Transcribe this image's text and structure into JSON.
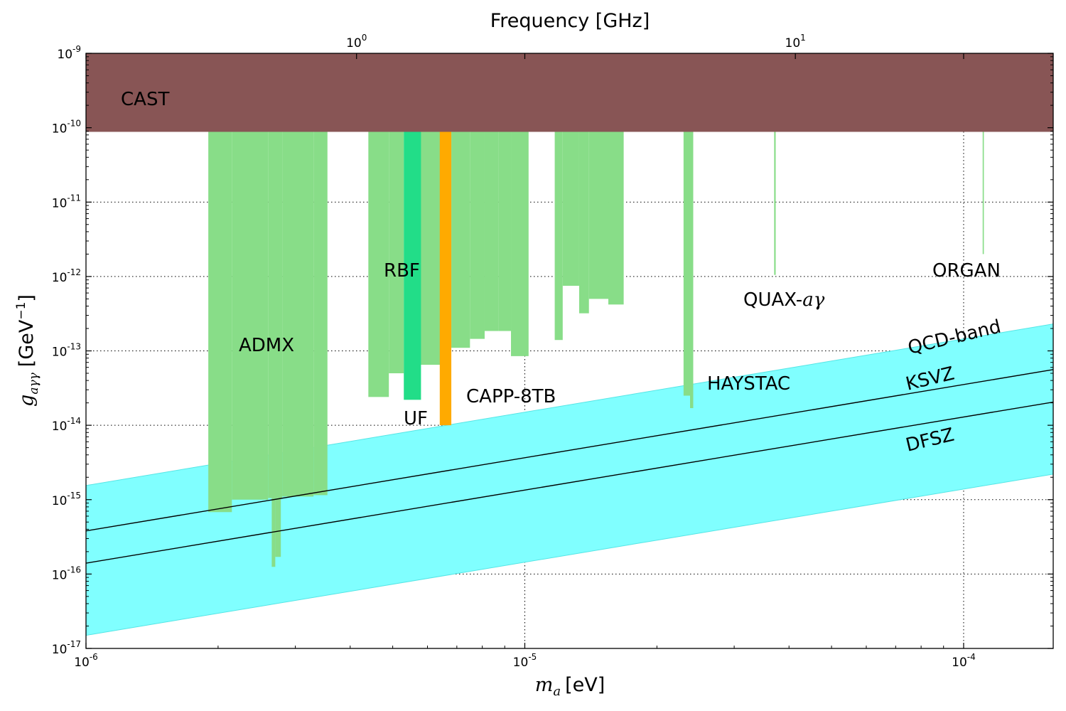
{
  "chart_data": {
    "type": "area",
    "scale": {
      "x": "log",
      "y": "log"
    },
    "xlim": [
      1e-06,
      0.00016
    ],
    "ylim": [
      1e-17,
      1e-09
    ],
    "x_ticks": [
      {
        "value": 1e-06,
        "base": "10",
        "exp": "-6"
      },
      {
        "value": 1e-05,
        "base": "10",
        "exp": "-5"
      },
      {
        "value": 0.0001,
        "base": "10",
        "exp": "-4"
      }
    ],
    "y_ticks": [
      {
        "value": 1e-17,
        "base": "10",
        "exp": "-17"
      },
      {
        "value": 1e-16,
        "base": "10",
        "exp": "-16"
      },
      {
        "value": 1e-15,
        "base": "10",
        "exp": "-15"
      },
      {
        "value": 1e-14,
        "base": "10",
        "exp": "-14"
      },
      {
        "value": 1e-13,
        "base": "10",
        "exp": "-13"
      },
      {
        "value": 1e-12,
        "base": "10",
        "exp": "-12"
      },
      {
        "value": 1e-11,
        "base": "10",
        "exp": "-11"
      },
      {
        "value": 1e-10,
        "base": "10",
        "exp": "-10"
      },
      {
        "value": 1e-09,
        "base": "10",
        "exp": "-9"
      }
    ],
    "top_ticks": [
      {
        "value_ghz": 1,
        "base": "10",
        "exp": "0"
      },
      {
        "value_ghz": 10,
        "base": "10",
        "exp": "1"
      }
    ],
    "ghz_per_ev": 241799.0,
    "xlabel_var": "m",
    "xlabel_sub": "a",
    "xlabel_unit": "[eV]",
    "ylabel_var": "g",
    "ylabel_sub": "aγγ",
    "ylabel_unit_pre": "[GeV",
    "ylabel_unit_exp": "−1",
    "ylabel_unit_post": "]",
    "top_xlabel": "Frequency [GHz]",
    "series": [
      {
        "name": "QCD-band",
        "color": "#80ffff",
        "band": {
          "x": [
            1e-06,
            0.00016
          ],
          "lower": [
            1.5e-17,
            2.2e-15
          ],
          "upper": [
            1.55e-15,
            2.3e-13
          ]
        }
      },
      {
        "name": "KSVZ",
        "color": "#000000",
        "line": {
          "x": [
            1e-06,
            0.00016
          ],
          "y": [
            3.8e-16,
            5.6e-14
          ]
        }
      },
      {
        "name": "DFSZ",
        "color": "#000000",
        "line": {
          "x": [
            1e-06,
            0.00016
          ],
          "y": [
            1.4e-16,
            2.05e-14
          ]
        }
      },
      {
        "name": "CAST",
        "color": "#885555",
        "bars": [
          {
            "x0": 1e-06,
            "x1": 0.00016,
            "y0": 8.8e-11,
            "y1": 1e-09
          }
        ]
      },
      {
        "name": "ADMX",
        "color": "#88dd88",
        "bars": [
          {
            "x0": 1.9e-06,
            "x1": 2.15e-06,
            "y0": 6.8e-16,
            "y1": 9e-11
          },
          {
            "x0": 2.15e-06,
            "x1": 2.6e-06,
            "y0": 1e-15,
            "y1": 9e-11
          },
          {
            "x0": 2.6e-06,
            "x1": 2.8e-06,
            "y0": 1.05e-15,
            "y1": 9e-11
          },
          {
            "x0": 2.8e-06,
            "x1": 3.3e-06,
            "y0": 1.1e-15,
            "y1": 9e-11
          },
          {
            "x0": 3.3e-06,
            "x1": 3.55e-06,
            "y0": 1.15e-15,
            "y1": 9e-11
          },
          {
            "x0": 2.65e-06,
            "x1": 2.7e-06,
            "y0": 1.25e-16,
            "y1": 1.05e-15
          },
          {
            "x0": 2.7e-06,
            "x1": 2.78e-06,
            "y0": 1.7e-16,
            "y1": 1.05e-15
          },
          {
            "x0": 4.4e-06,
            "x1": 4.9e-06,
            "y0": 2.4e-14,
            "y1": 9e-11
          },
          {
            "x0": 4.9e-06,
            "x1": 5.3e-06,
            "y0": 5e-14,
            "y1": 9e-11
          },
          {
            "x0": 5.7e-06,
            "x1": 6.5e-06,
            "y0": 6.5e-14,
            "y1": 9e-11
          },
          {
            "x0": 6.8e-06,
            "x1": 7.5e-06,
            "y0": 1.1e-13,
            "y1": 9e-11
          },
          {
            "x0": 7.5e-06,
            "x1": 8.1e-06,
            "y0": 1.45e-13,
            "y1": 9e-11
          },
          {
            "x0": 8.1e-06,
            "x1": 8.7e-06,
            "y0": 1.85e-13,
            "y1": 9e-11
          },
          {
            "x0": 8.7e-06,
            "x1": 9.3e-06,
            "y0": 1.85e-13,
            "y1": 9e-11
          },
          {
            "x0": 9.3e-06,
            "x1": 1.02e-05,
            "y0": 8.5e-14,
            "y1": 9e-11
          },
          {
            "x0": 1.17e-05,
            "x1": 1.22e-05,
            "y0": 1.4e-13,
            "y1": 9e-11
          },
          {
            "x0": 1.22e-05,
            "x1": 1.33e-05,
            "y0": 7.5e-13,
            "y1": 9e-11
          },
          {
            "x0": 1.33e-05,
            "x1": 1.4e-05,
            "y0": 3.2e-13,
            "y1": 9e-11
          },
          {
            "x0": 1.4e-05,
            "x1": 1.55e-05,
            "y0": 5e-13,
            "y1": 9e-11
          },
          {
            "x0": 1.55e-05,
            "x1": 1.68e-05,
            "y0": 4.2e-13,
            "y1": 9e-11
          }
        ]
      },
      {
        "name": "HAYSTAC",
        "color": "#88dd88",
        "bars": [
          {
            "x0": 2.3e-05,
            "x1": 2.38e-05,
            "y0": 2.5e-14,
            "y1": 9e-11
          },
          {
            "x0": 2.38e-05,
            "x1": 2.42e-05,
            "y0": 1.7e-14,
            "y1": 9e-11
          }
        ]
      },
      {
        "name": "QUAX-aγ",
        "color": "#88dd88",
        "bars": [
          {
            "x0": 3.7e-05,
            "x1": 3.73e-05,
            "y0": 1.05e-12,
            "y1": 9e-11
          }
        ]
      },
      {
        "name": "ORGAN",
        "color": "#88dd88",
        "bars": [
          {
            "x0": 0.0001105,
            "x1": 0.0001112,
            "y0": 2e-12,
            "y1": 9e-11
          }
        ]
      },
      {
        "name": "UF",
        "color": "#22dd88",
        "bars": [
          {
            "x0": 5.3e-06,
            "x1": 5.8e-06,
            "y0": 2.2e-14,
            "y1": 9e-11
          }
        ]
      },
      {
        "name": "CAPP-8TB",
        "color": "#ffaa00",
        "bars": [
          {
            "x0": 6.4e-06,
            "x1": 6.8e-06,
            "y0": 1e-14,
            "y1": 1e-09
          }
        ]
      }
    ],
    "labels": {
      "cast": "CAST",
      "admx": "ADMX",
      "rbf": "RBF",
      "uf": "UF",
      "capp": "CAPP-8TB",
      "haystac": "HAYSTAC",
      "quax_prefix": "QUAX-",
      "quax_sym": "aγ",
      "organ": "ORGAN",
      "qcd_band": "QCD-band",
      "ksvz": "KSVZ",
      "dfsz": "DFSZ"
    }
  }
}
